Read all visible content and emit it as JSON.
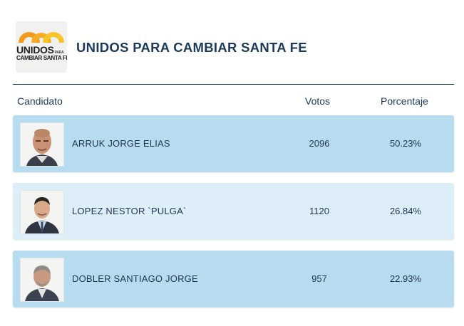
{
  "party": {
    "logo_line1": "UNIDOS",
    "logo_small": "PARA",
    "logo_line2": "CAMBIAR SANTA FE",
    "title": "UNIDOS PARA CAMBIAR SANTA FE"
  },
  "table": {
    "headers": {
      "candidate": "Candidato",
      "votes": "Votos",
      "percentage": "Porcentaje"
    },
    "rows": [
      {
        "name": "ARRUK JORGE ELIAS",
        "votes": "2096",
        "percentage": "50.23%"
      },
      {
        "name": "LOPEZ NESTOR `PULGA`",
        "votes": "1120",
        "percentage": "26.84%"
      },
      {
        "name": "DOBLER SANTIAGO JORGE",
        "votes": "957",
        "percentage": "22.93%"
      }
    ]
  },
  "colors": {
    "accent": "#1c3b5a",
    "row_highlight": "#b8dcef",
    "row_alt": "#ddeef8",
    "logo_orange": "#f39a1f",
    "logo_yellow": "#f7c52a"
  },
  "icons": {
    "logo": "sun-arcs-logo",
    "avatars": [
      "candidate-photo",
      "candidate-photo",
      "candidate-photo"
    ]
  }
}
